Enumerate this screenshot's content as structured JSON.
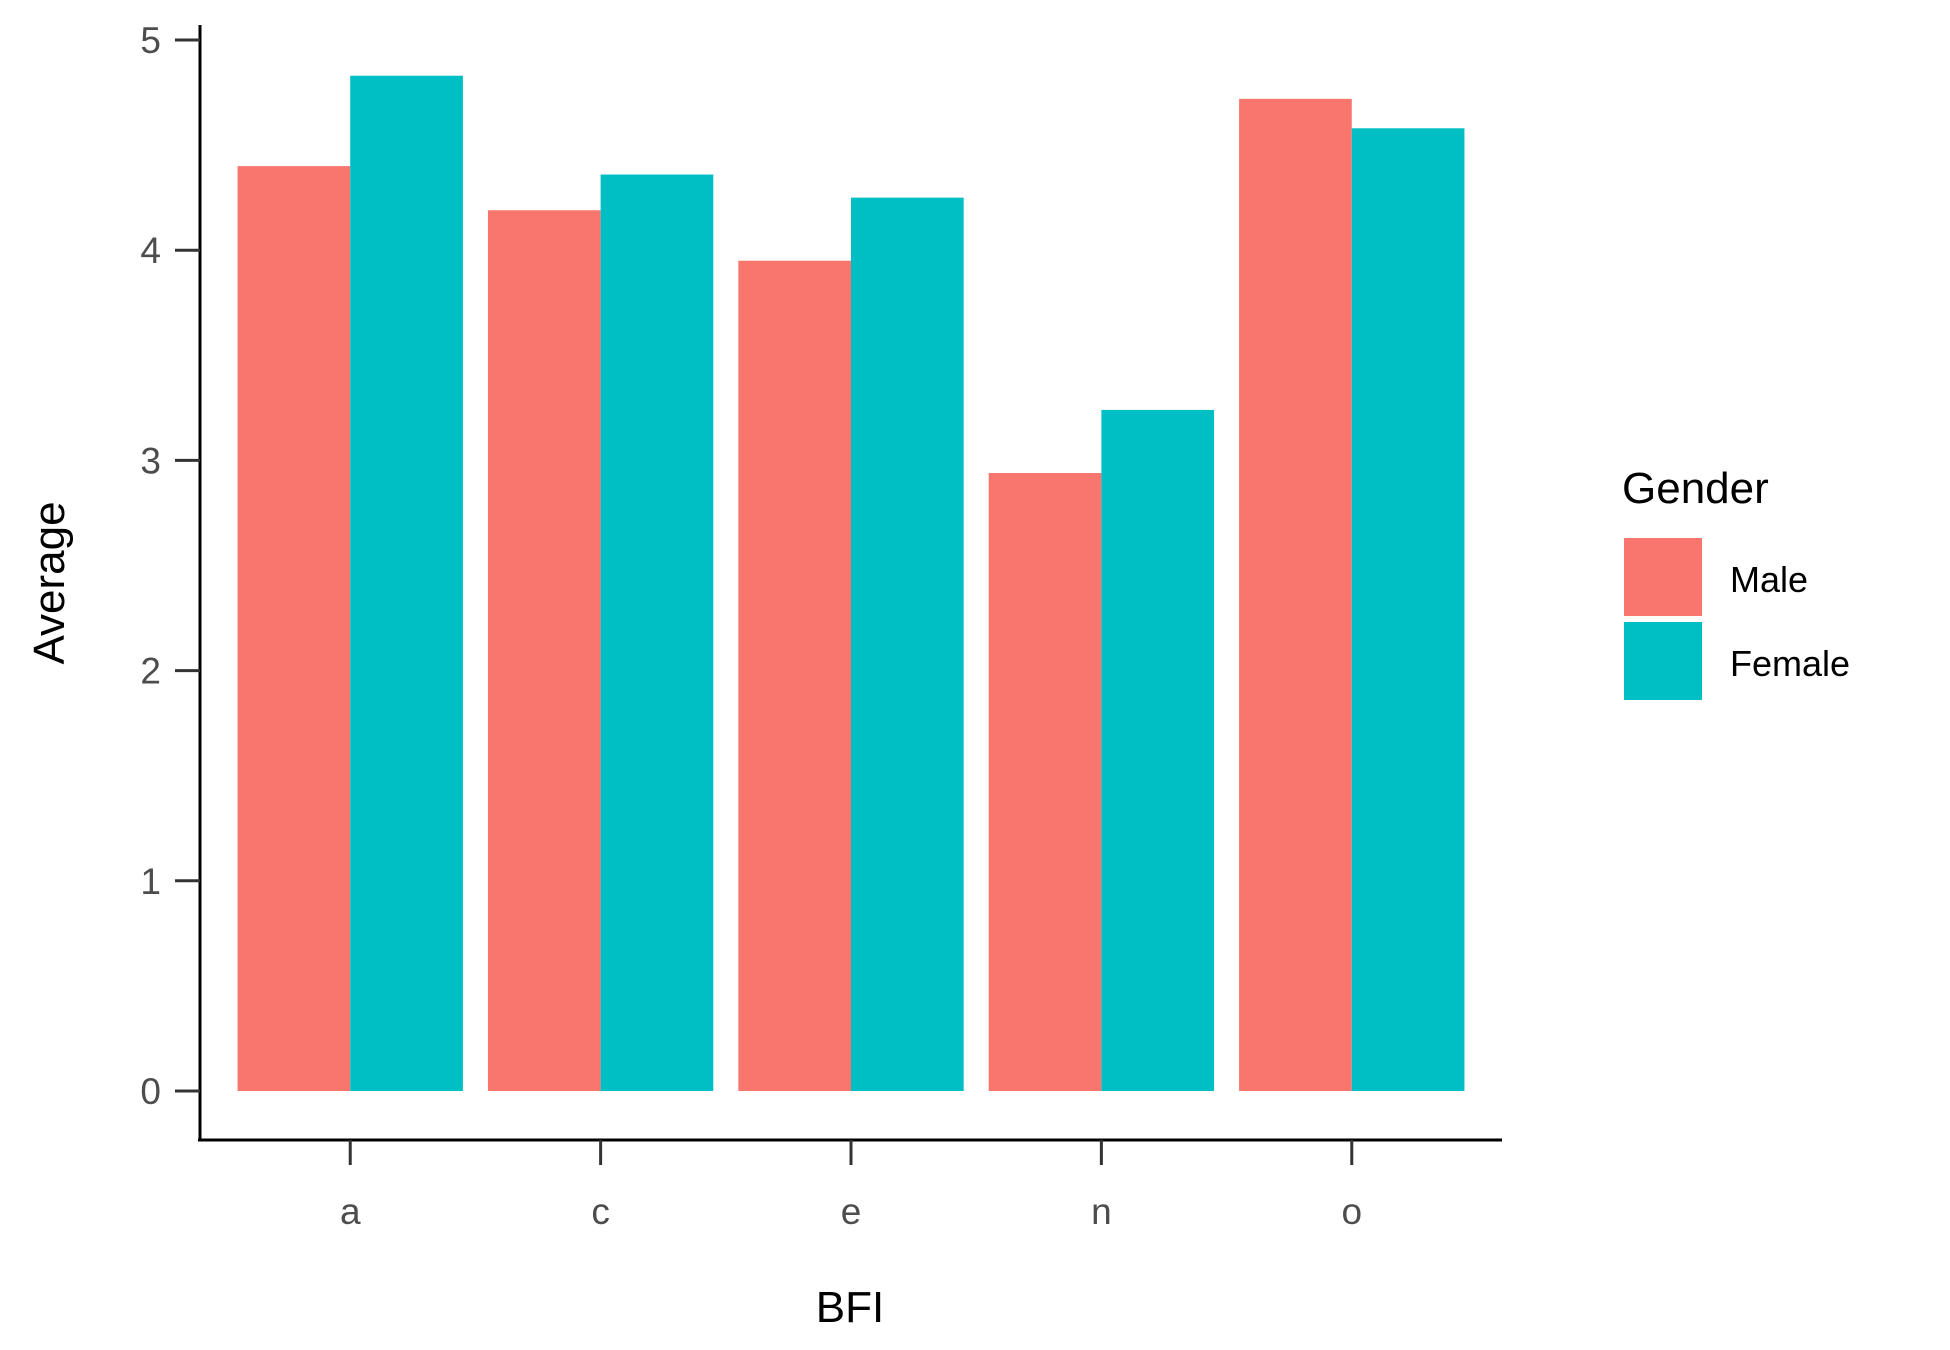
{
  "chart_data": {
    "type": "bar",
    "categories": [
      "a",
      "c",
      "e",
      "n",
      "o"
    ],
    "series": [
      {
        "name": "Male",
        "values": [
          4.4,
          4.19,
          3.95,
          2.94,
          4.72
        ],
        "color": "#F8766D"
      },
      {
        "name": "Female",
        "values": [
          4.83,
          4.36,
          4.25,
          3.24,
          4.58
        ],
        "color": "#00BFC4"
      }
    ],
    "xlabel": "BFI",
    "ylabel": "Average",
    "ylim": [
      -0.24,
      5.07
    ],
    "yticks": [
      "0",
      "1",
      "2",
      "3",
      "4",
      "5"
    ],
    "legend": {
      "title": "Gender",
      "position": "right",
      "labels": [
        "Male",
        "Female"
      ]
    },
    "grid": false
  }
}
